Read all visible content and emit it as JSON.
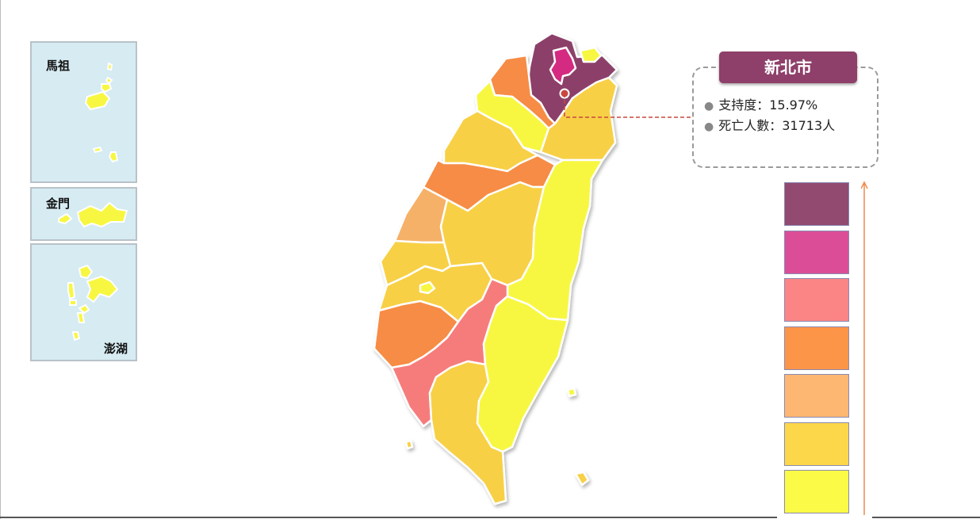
{
  "insets": {
    "matsu": {
      "label": "馬祖"
    },
    "kinmen": {
      "label": "金門"
    },
    "penghu": {
      "label": "澎湖"
    }
  },
  "callout": {
    "title": "新北市",
    "support_label": "支持度：",
    "support_value": "15.97%",
    "deaths_label": "死亡人數：",
    "deaths_value": "31713人"
  },
  "legend": {
    "colors": [
      "#924a70",
      "#dc4d97",
      "#fb8585",
      "#fd9548",
      "#fdb772",
      "#fdd74a",
      "#fbfb47"
    ]
  },
  "map_colors": {
    "darkpurple": "#8c3f69",
    "magenta": "#d42b82",
    "pink": "#f67b7b",
    "orange": "#f68c44",
    "lightorange": "#f5b168",
    "gold": "#f7d045",
    "yellow": "#f7f742"
  }
}
